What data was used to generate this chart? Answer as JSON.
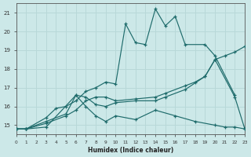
{
  "xlabel": "Humidex (Indice chaleur)",
  "bg_color": "#cce8e8",
  "line_color": "#1e6b6b",
  "grid_color": "#b8d8d8",
  "xlim": [
    0,
    23
  ],
  "ylim": [
    14.5,
    21.5
  ],
  "yticks": [
    15,
    16,
    17,
    18,
    19,
    20,
    21
  ],
  "xticks": [
    0,
    1,
    2,
    3,
    4,
    5,
    6,
    7,
    8,
    9,
    10,
    11,
    12,
    13,
    14,
    15,
    16,
    17,
    18,
    19,
    20,
    21,
    22,
    23
  ],
  "lines": [
    {
      "x": [
        0,
        1,
        3,
        4,
        5,
        6,
        7,
        8,
        9,
        10,
        11,
        12,
        13,
        14,
        15,
        16,
        17,
        19,
        20,
        22
      ],
      "y": [
        14.8,
        14.8,
        15.4,
        15.9,
        16.0,
        16.3,
        16.8,
        17.0,
        17.3,
        17.2,
        20.4,
        19.4,
        19.3,
        21.2,
        20.3,
        20.8,
        19.3,
        19.3,
        18.7,
        16.6
      ]
    },
    {
      "x": [
        0,
        1,
        3,
        5,
        6,
        7,
        8,
        9,
        10,
        12,
        14,
        15,
        17,
        18,
        19,
        20,
        21,
        22,
        23
      ],
      "y": [
        14.8,
        14.8,
        15.1,
        15.5,
        15.8,
        16.3,
        16.5,
        16.5,
        16.3,
        16.4,
        16.5,
        16.7,
        17.1,
        17.3,
        17.6,
        18.5,
        18.7,
        18.9,
        19.2
      ]
    },
    {
      "x": [
        0,
        1,
        3,
        6,
        7,
        8,
        9,
        10,
        12,
        14,
        16,
        18,
        20,
        21,
        22,
        23
      ],
      "y": [
        14.8,
        14.8,
        14.9,
        16.6,
        16.0,
        15.5,
        15.2,
        15.5,
        15.3,
        15.8,
        15.5,
        15.2,
        15.0,
        14.9,
        14.9,
        14.8
      ]
    },
    {
      "x": [
        0,
        1,
        3,
        5,
        6,
        7,
        8,
        9,
        10,
        12,
        14,
        15,
        17,
        19,
        20,
        22,
        23
      ],
      "y": [
        14.8,
        14.8,
        15.2,
        15.6,
        16.6,
        16.5,
        16.1,
        16.0,
        16.2,
        16.3,
        16.3,
        16.5,
        16.9,
        17.6,
        18.5,
        16.5,
        14.8
      ]
    }
  ]
}
